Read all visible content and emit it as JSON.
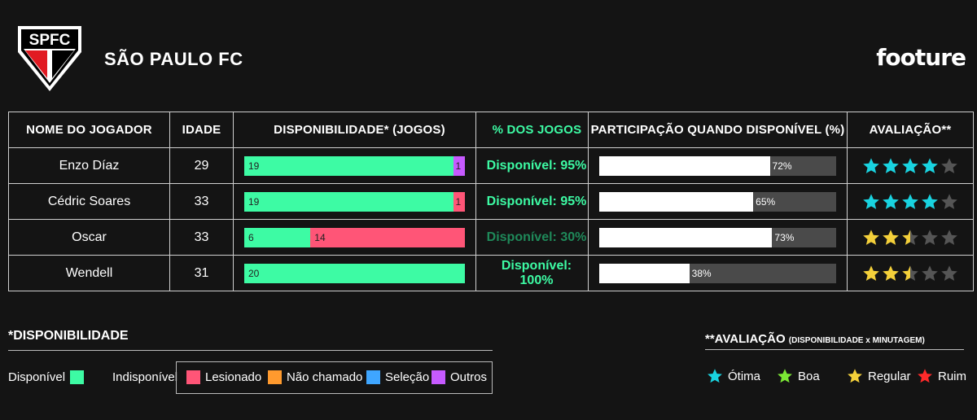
{
  "header": {
    "club_logo_text": "SPFC",
    "club_name": "SÃO PAULO FC",
    "brand": "footure"
  },
  "table": {
    "headers": {
      "name": "NOME DO JOGADOR",
      "age": "IDADE",
      "availability": "DISPONIBILIDADE* (JOGOS)",
      "pct_games": "% DOS JOGOS",
      "participation": "PARTICIPAÇÃO QUANDO DISPONÍVEL (%)",
      "rating": "AVALIAÇÃO**"
    },
    "rows": [
      {
        "name": "Enzo Díaz",
        "age": "29",
        "available": 19,
        "injured": 0,
        "other": 1,
        "pct_text": "Disponível: 95%",
        "pct_value": 95,
        "participation": 72,
        "participation_label": "72%",
        "rating": 4,
        "rating_color": "#19d3e0"
      },
      {
        "name": "Cédric Soares",
        "age": "33",
        "available": 19,
        "injured": 1,
        "other": 0,
        "pct_text": "Disponível: 95%",
        "pct_value": 95,
        "participation": 65,
        "participation_label": "65%",
        "rating": 4,
        "rating_color": "#19d3e0"
      },
      {
        "name": "Oscar",
        "age": "33",
        "available": 6,
        "injured": 14,
        "other": 0,
        "pct_text": "Disponível: 30%",
        "pct_value": 30,
        "participation": 73,
        "participation_label": "73%",
        "rating": 2.5,
        "rating_color": "#f4d03a"
      },
      {
        "name": "Wendell",
        "age": "31",
        "available": 20,
        "injured": 0,
        "other": 0,
        "pct_text": "Disponível: 100%",
        "pct_value": 100,
        "participation": 38,
        "participation_label": "38%",
        "rating": 2.5,
        "rating_color": "#f4d03a"
      }
    ]
  },
  "legend_availability": {
    "title": "*DISPONIBILIDADE",
    "available": "Disponível",
    "unavailable": "Indisponível",
    "injured": "Lesionado",
    "not_called": "Não chamado",
    "national_team": "Seleção",
    "others": "Outros"
  },
  "legend_rating": {
    "title": "**AVALIAÇÃO",
    "subtitle": "(DISPONIBILIDADE x MINUTAGEM)",
    "great": "Ótima",
    "good": "Boa",
    "regular": "Regular",
    "bad": "Ruim"
  },
  "colors": {
    "available": "#3dfba4",
    "injured": "#ff5577",
    "not_called": "#ff9a2e",
    "national_team": "#3fa6ff",
    "others": "#c65aff",
    "great": "#19d3e0",
    "good": "#7be835",
    "regular": "#f4d03a",
    "bad": "#ff2a2a",
    "star_empty": "#555555"
  }
}
